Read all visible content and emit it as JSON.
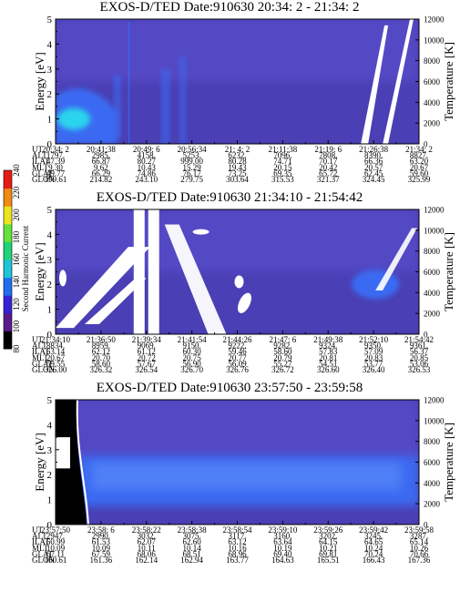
{
  "chart_data": [
    {
      "type": "heatmap",
      "title": "EXOS-D/TED   Date:910630  20:34: 2 - 21:34: 2",
      "ylabel": "Energy [eV]",
      "y2label": "Temperature [K]",
      "ylim": [
        0,
        5
      ],
      "y_ticks": [
        "0",
        "1",
        "2",
        "3",
        "4",
        "5"
      ],
      "y2lim": [
        0,
        12000
      ],
      "y2_ticks": [
        "0",
        "2000",
        "4000",
        "6000",
        "8000",
        "10000",
        "12000"
      ],
      "table": {
        "row_labels": [
          "UT",
          "ALT",
          "ILAT",
          "MLT",
          "GLAT",
          "GLON"
        ],
        "columns": [
          [
            "20:34: 2",
            "1797.",
            "47.39",
            "9.30",
            "49.77",
            "199.61"
          ],
          [
            "20:41:38",
            "2985.",
            "66.87",
            "9.62",
            "66.29",
            "214.82"
          ],
          [
            "20:49: 6",
            "4158.",
            "80.27",
            "10.43",
            "74.86",
            "243.10"
          ],
          [
            "20:56:34",
            "5253.",
            "999.00",
            "15.29",
            "76.17",
            "279.75"
          ],
          [
            "21: 4: 2",
            "6232.",
            "80.28",
            "19.43",
            "73.25",
            "303.64"
          ],
          [
            "21:11:38",
            "7096.",
            "74.71",
            "20.15",
            "69.35",
            "315.53"
          ],
          [
            "21:19: 6",
            "7808.",
            "70.17",
            "20.42",
            "65.72",
            "321.37"
          ],
          [
            "21:26:38",
            "8390.",
            "66.36",
            "20.57",
            "62.45",
            "324.45"
          ],
          [
            "21:34: 2",
            "8827.",
            "63.20",
            "20.67",
            "59.60",
            "325.99"
          ]
        ]
      }
    },
    {
      "type": "heatmap",
      "title": "EXOS-D/TED   Date:910630  21:34:10 - 21:54:42",
      "ylabel": "Energy [eV]",
      "y2label": "Temperature [K]",
      "ylim": [
        0,
        5
      ],
      "y_ticks": [
        "0",
        "1",
        "2",
        "3",
        "4",
        "5"
      ],
      "y2lim": [
        0,
        12000
      ],
      "y2_ticks": [
        "0",
        "2000",
        "4000",
        "6000",
        "8000",
        "10000",
        "12000"
      ],
      "colorbar": {
        "label": "Second Harmonic Current",
        "range": [
          80,
          240
        ],
        "ticks": [
          "80",
          "100",
          "120",
          "140",
          "160",
          "180",
          "200",
          "220",
          "240"
        ]
      },
      "table": {
        "row_labels": [
          "UT",
          "ALT",
          "ILAT",
          "MLT",
          "GLAT",
          "GLON"
        ],
        "columns": [
          [
            "21:34:10",
            "8834.",
            "63.14",
            "20.67",
            "59.55",
            "326.00"
          ],
          [
            "21:36:50",
            "8959.",
            "62.12",
            "20.70",
            "58.60",
            "326.32"
          ],
          [
            "21:39:34",
            "9069.",
            "61.12",
            "20.72",
            "57.67",
            "326.54"
          ],
          [
            "21:41:54",
            "9150.",
            "60.30",
            "20.75",
            "56.90",
            "326.70"
          ],
          [
            "21:44:26",
            "9222.",
            "59.46",
            "20.77",
            "56.09",
            "326.76"
          ],
          [
            "21:47: 6",
            "9282.",
            "58.60",
            "20.79",
            "55.27",
            "326.72"
          ],
          [
            "21:49:38",
            "9324.",
            "57.83",
            "20.81",
            "54.51",
            "326.60"
          ],
          [
            "21:52:10",
            "9350.",
            "57.09",
            "20.83",
            "53.77",
            "326.40"
          ],
          [
            "21:54:42",
            "9361.",
            "56.37",
            "20.85",
            "53.06",
            "326.53"
          ]
        ]
      }
    },
    {
      "type": "heatmap",
      "title": "EXOS-D/TED   Date:910630  23:57:50 - 23:59:58",
      "ylabel": "Energy [eV]",
      "y2label": "Temperature [K]",
      "ylim": [
        0,
        5
      ],
      "y_ticks": [
        "0",
        "1",
        "2",
        "3",
        "4",
        "5"
      ],
      "y2lim": [
        0,
        12000
      ],
      "y2_ticks": [
        "0",
        "2000",
        "4000",
        "6000",
        "8000",
        "10000",
        "12000"
      ],
      "table": {
        "row_labels": [
          "UT",
          "ALT",
          "ILAT",
          "MLT",
          "GLAT",
          "GLON"
        ],
        "columns": [
          [
            "23:57:50",
            "2947.",
            "60.99",
            "10.09",
            "67.11",
            "160.61"
          ],
          [
            "23:58: 6",
            "2990.",
            "61.53",
            "10.09",
            "67.59",
            "161.36"
          ],
          [
            "23:58:22",
            "3032.",
            "62.07",
            "10.11",
            "68.06",
            "162.14"
          ],
          [
            "23:58:38",
            "3075.",
            "62.60",
            "10.14",
            "68.51",
            "162.94"
          ],
          [
            "23:58:54",
            "3117.",
            "63.12",
            "10.16",
            "68.96",
            "163.77"
          ],
          [
            "23:59:10",
            "3160.",
            "63.64",
            "10.19",
            "69.40",
            "164.63"
          ],
          [
            "23:59:26",
            "3202.",
            "64.15",
            "10.21",
            "69.81",
            "165.51"
          ],
          [
            "23:59:42",
            "3245.",
            "64.65",
            "10.24",
            "70.24",
            "166.43"
          ],
          [
            "23:59:58",
            "3287.",
            "65.14",
            "10.26",
            "70.66",
            "167.36"
          ]
        ]
      }
    }
  ],
  "colors": {
    "background_dark": "#4a3fb4",
    "background_light": "#5f52d6",
    "band_blue": "#3a6af2",
    "cyan": "#2ad4ec",
    "white_gap": "#ffffff",
    "black_edge": "#000000"
  }
}
